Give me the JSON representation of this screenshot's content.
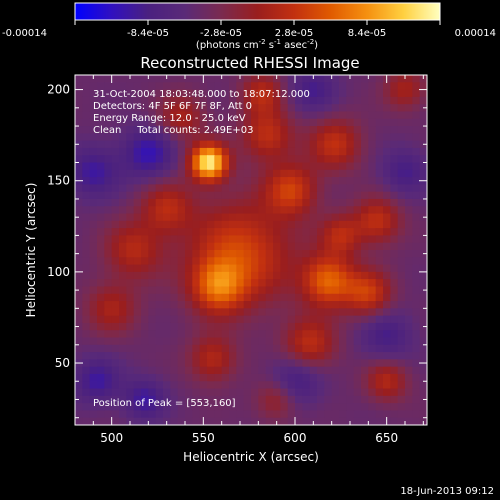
{
  "chart_data": {
    "type": "heatmap",
    "title": "Reconstructed RHESSI Image",
    "xlabel": "Heliocentric X (arcsec)",
    "ylabel": "Heliocentric Y (arcsec)",
    "xlim": [
      480,
      672
    ],
    "ylim": [
      16,
      208
    ],
    "x_ticks": [
      500,
      550,
      600,
      650
    ],
    "y_ticks": [
      50,
      100,
      150,
      200
    ],
    "colorbar": {
      "ticks": [
        "-0.00014",
        "-8.4e-05",
        "-2.8e-05",
        "2.8e-05",
        "8.4e-05",
        "0.00014"
      ],
      "range": [
        -0.00014,
        0.00014
      ],
      "units_line1": "(photons cm",
      "units_sup1": "-2",
      "units_line2": " s",
      "units_sup2": "-1",
      "units_line3": " asec",
      "units_sup3": "-2",
      "units_line4": ")"
    },
    "colormap": [
      "#0000ff",
      "#3010c0",
      "#4a2080",
      "#5a2a78",
      "#7a2a50",
      "#9a1e1e",
      "#c23010",
      "#e05a00",
      "#f59010",
      "#ffd040",
      "#ffffc0"
    ],
    "info_lines": [
      "31-Oct-2004 18:03:48.000 to 18:07:12.000",
      "Detectors: 4F 5F 6F 7F 8F, Att 0",
      "Energy Range: 12.0 - 25.0 keV",
      "Clean     Total counts: 2.49E+03"
    ],
    "peak_label": "Position of Peak = [553,160]",
    "peak": [
      553,
      160
    ],
    "sources": [
      {
        "x": 553,
        "y": 160,
        "sigma": 7,
        "amp": 1.0
      },
      {
        "x": 570,
        "y": 110,
        "sigma": 20,
        "amp": 0.5
      },
      {
        "x": 558,
        "y": 92,
        "sigma": 10,
        "amp": 0.5
      },
      {
        "x": 618,
        "y": 95,
        "sigma": 10,
        "amp": 0.6
      },
      {
        "x": 640,
        "y": 88,
        "sigma": 9,
        "amp": 0.45
      },
      {
        "x": 598,
        "y": 145,
        "sigma": 10,
        "amp": 0.45
      },
      {
        "x": 585,
        "y": 175,
        "sigma": 10,
        "amp": 0.4
      },
      {
        "x": 622,
        "y": 170,
        "sigma": 10,
        "amp": 0.4
      },
      {
        "x": 512,
        "y": 112,
        "sigma": 11,
        "amp": 0.35
      },
      {
        "x": 530,
        "y": 135,
        "sigma": 10,
        "amp": 0.35
      },
      {
        "x": 645,
        "y": 128,
        "sigma": 9,
        "amp": 0.4
      },
      {
        "x": 608,
        "y": 60,
        "sigma": 10,
        "amp": 0.4
      },
      {
        "x": 555,
        "y": 52,
        "sigma": 9,
        "amp": 0.35
      },
      {
        "x": 500,
        "y": 80,
        "sigma": 10,
        "amp": 0.3
      },
      {
        "x": 538,
        "y": 185,
        "sigma": 9,
        "amp": 0.3
      },
      {
        "x": 650,
        "y": 40,
        "sigma": 8,
        "amp": 0.35
      },
      {
        "x": 590,
        "y": 30,
        "sigma": 8,
        "amp": 0.3
      },
      {
        "x": 660,
        "y": 200,
        "sigma": 8,
        "amp": 0.3
      },
      {
        "x": 625,
        "y": 120,
        "sigma": 8,
        "amp": 0.35
      },
      {
        "x": 582,
        "y": 198,
        "sigma": 8,
        "amp": 0.35
      },
      {
        "x": 518,
        "y": 30,
        "sigma": 8,
        "amp": -0.3
      },
      {
        "x": 520,
        "y": 165,
        "sigma": 10,
        "amp": -0.35
      },
      {
        "x": 600,
        "y": 40,
        "sigma": 10,
        "amp": -0.3
      },
      {
        "x": 492,
        "y": 40,
        "sigma": 9,
        "amp": -0.3
      },
      {
        "x": 650,
        "y": 65,
        "sigma": 10,
        "amp": -0.25
      },
      {
        "x": 610,
        "y": 200,
        "sigma": 9,
        "amp": -0.25
      },
      {
        "x": 490,
        "y": 155,
        "sigma": 10,
        "amp": -0.3
      },
      {
        "x": 660,
        "y": 155,
        "sigma": 9,
        "amp": -0.25
      }
    ]
  },
  "footer": {
    "date": "18-Jun-2013 09:12"
  }
}
